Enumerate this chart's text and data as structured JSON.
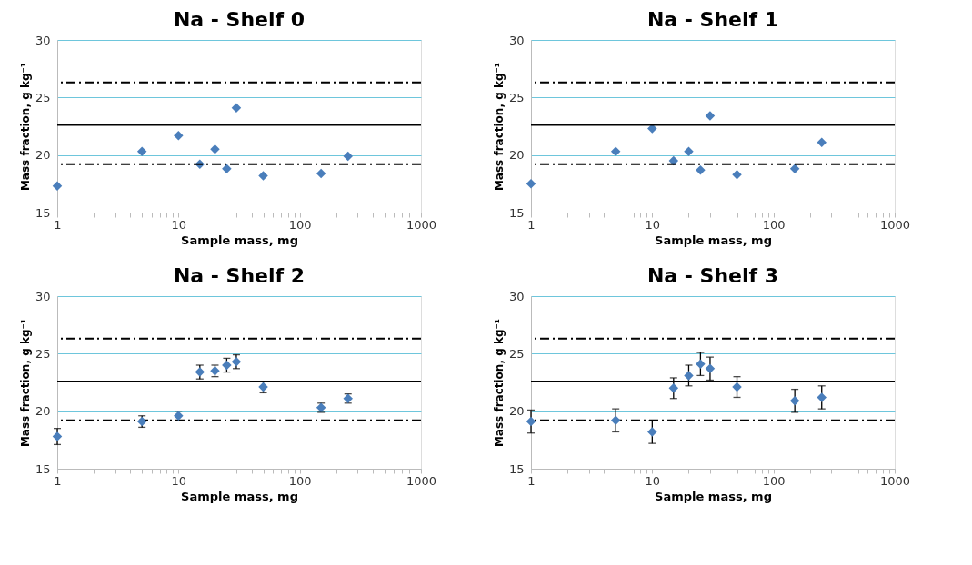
{
  "chart_data": [
    {
      "type": "scatter",
      "title": "Na - Shelf 0",
      "xlabel": "Sample mass, mg",
      "ylabel": "Mass fraction, g kg⁻¹",
      "log": "x",
      "grid": "y",
      "marker": "diamond",
      "x": [
        1,
        5,
        10,
        15,
        20,
        25,
        30,
        50,
        150,
        250
      ],
      "series": [
        {
          "color": "#4a7ebb",
          "values": [
            17.3,
            20.3,
            21.7,
            19.2,
            20.5,
            18.8,
            24.1,
            18.2,
            18.4,
            19.9
          ]
        }
      ],
      "xlim": [
        1,
        1000
      ],
      "ylim": [
        15,
        30
      ],
      "yticks": [
        15,
        20,
        25,
        30
      ],
      "xticks": [
        1,
        {
          "value": 2,
          "label": null
        },
        {
          "value": 3,
          "label": null
        },
        {
          "value": 4,
          "label": null
        },
        {
          "value": 5,
          "label": null
        },
        {
          "value": 6,
          "label": null
        },
        {
          "value": 7,
          "label": null
        },
        {
          "value": 8,
          "label": null
        },
        {
          "value": 9,
          "label": null
        },
        10,
        {
          "value": 20,
          "label": null
        },
        {
          "value": 30,
          "label": null
        },
        {
          "value": 40,
          "label": null
        },
        {
          "value": 50,
          "label": null
        },
        {
          "value": 60,
          "label": null
        },
        {
          "value": 70,
          "label": null
        },
        {
          "value": 80,
          "label": null
        },
        {
          "value": 90,
          "label": null
        },
        100,
        {
          "value": 200,
          "label": null
        },
        {
          "value": 300,
          "label": null
        },
        {
          "value": 400,
          "label": null
        },
        {
          "value": 500,
          "label": null
        },
        {
          "value": 600,
          "label": null
        },
        {
          "value": 700,
          "label": null
        },
        {
          "value": 800,
          "label": null
        },
        {
          "value": 900,
          "label": null
        },
        1000
      ],
      "ref_lines": [
        {
          "axis": "y",
          "value": 26.3,
          "line_style": "dashdot",
          "color": "#000000"
        },
        {
          "axis": "y",
          "value": 22.6,
          "line_style": "solid",
          "color": "#000000"
        },
        {
          "axis": "y",
          "value": 19.2,
          "line_style": "dashdot",
          "color": "#000000"
        }
      ]
    },
    {
      "type": "scatter",
      "title": "Na - Shelf 1",
      "xlabel": "Sample mass, mg",
      "ylabel": "Mass fraction, g kg⁻¹",
      "log": "x",
      "grid": "y",
      "marker": "diamond",
      "x": [
        1,
        5,
        10,
        15,
        20,
        25,
        30,
        50,
        150,
        250
      ],
      "series": [
        {
          "color": "#4a7ebb",
          "values": [
            17.5,
            20.3,
            22.3,
            19.5,
            20.3,
            18.7,
            23.4,
            18.3,
            18.8,
            21.1
          ]
        }
      ],
      "xlim": [
        1,
        1000
      ],
      "ylim": [
        15,
        30
      ],
      "yticks": [
        15,
        20,
        25,
        30
      ],
      "xticks": [
        1,
        {
          "value": 2,
          "label": null
        },
        {
          "value": 3,
          "label": null
        },
        {
          "value": 4,
          "label": null
        },
        {
          "value": 5,
          "label": null
        },
        {
          "value": 6,
          "label": null
        },
        {
          "value": 7,
          "label": null
        },
        {
          "value": 8,
          "label": null
        },
        {
          "value": 9,
          "label": null
        },
        10,
        {
          "value": 20,
          "label": null
        },
        {
          "value": 30,
          "label": null
        },
        {
          "value": 40,
          "label": null
        },
        {
          "value": 50,
          "label": null
        },
        {
          "value": 60,
          "label": null
        },
        {
          "value": 70,
          "label": null
        },
        {
          "value": 80,
          "label": null
        },
        {
          "value": 90,
          "label": null
        },
        100,
        {
          "value": 200,
          "label": null
        },
        {
          "value": 300,
          "label": null
        },
        {
          "value": 400,
          "label": null
        },
        {
          "value": 500,
          "label": null
        },
        {
          "value": 600,
          "label": null
        },
        {
          "value": 700,
          "label": null
        },
        {
          "value": 800,
          "label": null
        },
        {
          "value": 900,
          "label": null
        },
        1000
      ],
      "ref_lines": [
        {
          "axis": "y",
          "value": 26.3,
          "line_style": "dashdot",
          "color": "#000000"
        },
        {
          "axis": "y",
          "value": 22.6,
          "line_style": "solid",
          "color": "#000000"
        },
        {
          "axis": "y",
          "value": 19.2,
          "line_style": "dashdot",
          "color": "#000000"
        }
      ]
    },
    {
      "type": "scatter",
      "title": "Na - Shelf 2",
      "xlabel": "Sample mass, mg",
      "ylabel": "Mass fraction, g kg⁻¹",
      "log": "x",
      "grid": "y",
      "marker": "diamond",
      "x": [
        1,
        5,
        10,
        15,
        20,
        25,
        30,
        50,
        150,
        250
      ],
      "series": [
        {
          "color": "#4a7ebb",
          "values": [
            17.8,
            19.1,
            19.6,
            23.4,
            23.5,
            24.0,
            24.3,
            22.1,
            20.3,
            21.1
          ],
          "errors": [
            0.7,
            0.5,
            0.4,
            0.6,
            0.5,
            0.6,
            0.6,
            0.5,
            0.4,
            0.4
          ]
        }
      ],
      "xlim": [
        1,
        1000
      ],
      "ylim": [
        15,
        30
      ],
      "yticks": [
        15,
        20,
        25,
        30
      ],
      "xticks": [
        1,
        {
          "value": 2,
          "label": null
        },
        {
          "value": 3,
          "label": null
        },
        {
          "value": 4,
          "label": null
        },
        {
          "value": 5,
          "label": null
        },
        {
          "value": 6,
          "label": null
        },
        {
          "value": 7,
          "label": null
        },
        {
          "value": 8,
          "label": null
        },
        {
          "value": 9,
          "label": null
        },
        10,
        {
          "value": 20,
          "label": null
        },
        {
          "value": 30,
          "label": null
        },
        {
          "value": 40,
          "label": null
        },
        {
          "value": 50,
          "label": null
        },
        {
          "value": 60,
          "label": null
        },
        {
          "value": 70,
          "label": null
        },
        {
          "value": 80,
          "label": null
        },
        {
          "value": 90,
          "label": null
        },
        100,
        {
          "value": 200,
          "label": null
        },
        {
          "value": 300,
          "label": null
        },
        {
          "value": 400,
          "label": null
        },
        {
          "value": 500,
          "label": null
        },
        {
          "value": 600,
          "label": null
        },
        {
          "value": 700,
          "label": null
        },
        {
          "value": 800,
          "label": null
        },
        {
          "value": 900,
          "label": null
        },
        1000
      ],
      "ref_lines": [
        {
          "axis": "y",
          "value": 26.3,
          "line_style": "dashdot",
          "color": "#000000"
        },
        {
          "axis": "y",
          "value": 22.6,
          "line_style": "solid",
          "color": "#000000"
        },
        {
          "axis": "y",
          "value": 19.2,
          "line_style": "dashdot",
          "color": "#000000"
        }
      ]
    },
    {
      "type": "scatter",
      "title": "Na - Shelf 3",
      "xlabel": "Sample mass, mg",
      "ylabel": "Mass fraction, g kg⁻¹",
      "log": "x",
      "grid": "y",
      "marker": "diamond",
      "x": [
        1,
        5,
        10,
        15,
        20,
        25,
        30,
        50,
        150,
        250
      ],
      "series": [
        {
          "color": "#4a7ebb",
          "values": [
            19.1,
            19.2,
            18.2,
            22.0,
            23.1,
            24.1,
            23.7,
            22.1,
            20.9,
            21.2
          ],
          "errors": [
            1.0,
            1.0,
            1.0,
            0.9,
            0.9,
            1.0,
            1.0,
            0.9,
            1.0,
            1.0
          ]
        }
      ],
      "xlim": [
        1,
        1000
      ],
      "ylim": [
        15,
        30
      ],
      "yticks": [
        15,
        20,
        25,
        30
      ],
      "xticks": [
        1,
        {
          "value": 2,
          "label": null
        },
        {
          "value": 3,
          "label": null
        },
        {
          "value": 4,
          "label": null
        },
        {
          "value": 5,
          "label": null
        },
        {
          "value": 6,
          "label": null
        },
        {
          "value": 7,
          "label": null
        },
        {
          "value": 8,
          "label": null
        },
        {
          "value": 9,
          "label": null
        },
        10,
        {
          "value": 20,
          "label": null
        },
        {
          "value": 30,
          "label": null
        },
        {
          "value": 40,
          "label": null
        },
        {
          "value": 50,
          "label": null
        },
        {
          "value": 60,
          "label": null
        },
        {
          "value": 70,
          "label": null
        },
        {
          "value": 80,
          "label": null
        },
        {
          "value": 90,
          "label": null
        },
        100,
        {
          "value": 200,
          "label": null
        },
        {
          "value": 300,
          "label": null
        },
        {
          "value": 400,
          "label": null
        },
        {
          "value": 500,
          "label": null
        },
        {
          "value": 600,
          "label": null
        },
        {
          "value": 700,
          "label": null
        },
        {
          "value": 800,
          "label": null
        },
        {
          "value": 900,
          "label": null
        },
        1000
      ],
      "ref_lines": [
        {
          "axis": "y",
          "value": 26.3,
          "line_style": "dashdot",
          "color": "#000000"
        },
        {
          "axis": "y",
          "value": 22.6,
          "line_style": "solid",
          "color": "#000000"
        },
        {
          "axis": "y",
          "value": 19.2,
          "line_style": "dashdot",
          "color": "#000000"
        }
      ]
    }
  ]
}
